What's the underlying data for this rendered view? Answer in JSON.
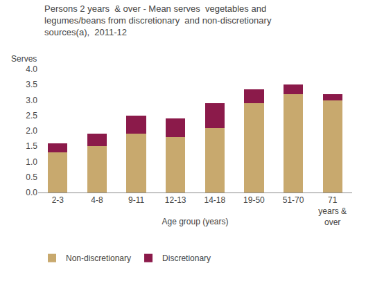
{
  "chart_data": {
    "type": "bar",
    "stacked": true,
    "title": "Persons 2 years  & over - Mean serves  vegetables and\nlegumes/beans from discretionary  and non-discretionary\nsources(a),  2011-12",
    "xlabel": "Age group (years)",
    "ylabel": "Serves",
    "categories": [
      "2-3",
      "4-8",
      "9-11",
      "12-13",
      "14-18",
      "19-50",
      "51-70",
      "71\nyears &\nover"
    ],
    "series": [
      {
        "name": "Non-discretionary",
        "color": "#C8A96E",
        "values": [
          1.3,
          1.5,
          1.9,
          1.8,
          2.1,
          2.9,
          3.2,
          3.0
        ]
      },
      {
        "name": "Discretionary",
        "color": "#8B1A4A",
        "values": [
          0.3,
          0.4,
          0.6,
          0.6,
          0.8,
          0.45,
          0.3,
          0.2
        ]
      }
    ],
    "ylim": [
      0,
      4.0
    ],
    "yticks": [
      {
        "value": 0,
        "label": "0.0"
      },
      0.5,
      {
        "value": 1,
        "label": "1.0"
      },
      1.5,
      {
        "value": 2,
        "label": "2.0"
      },
      2.5,
      {
        "value": 3,
        "label": "3.0"
      },
      3.5,
      {
        "value": 4,
        "label": "4.0"
      }
    ],
    "grid": false,
    "legend": "bottom left"
  }
}
